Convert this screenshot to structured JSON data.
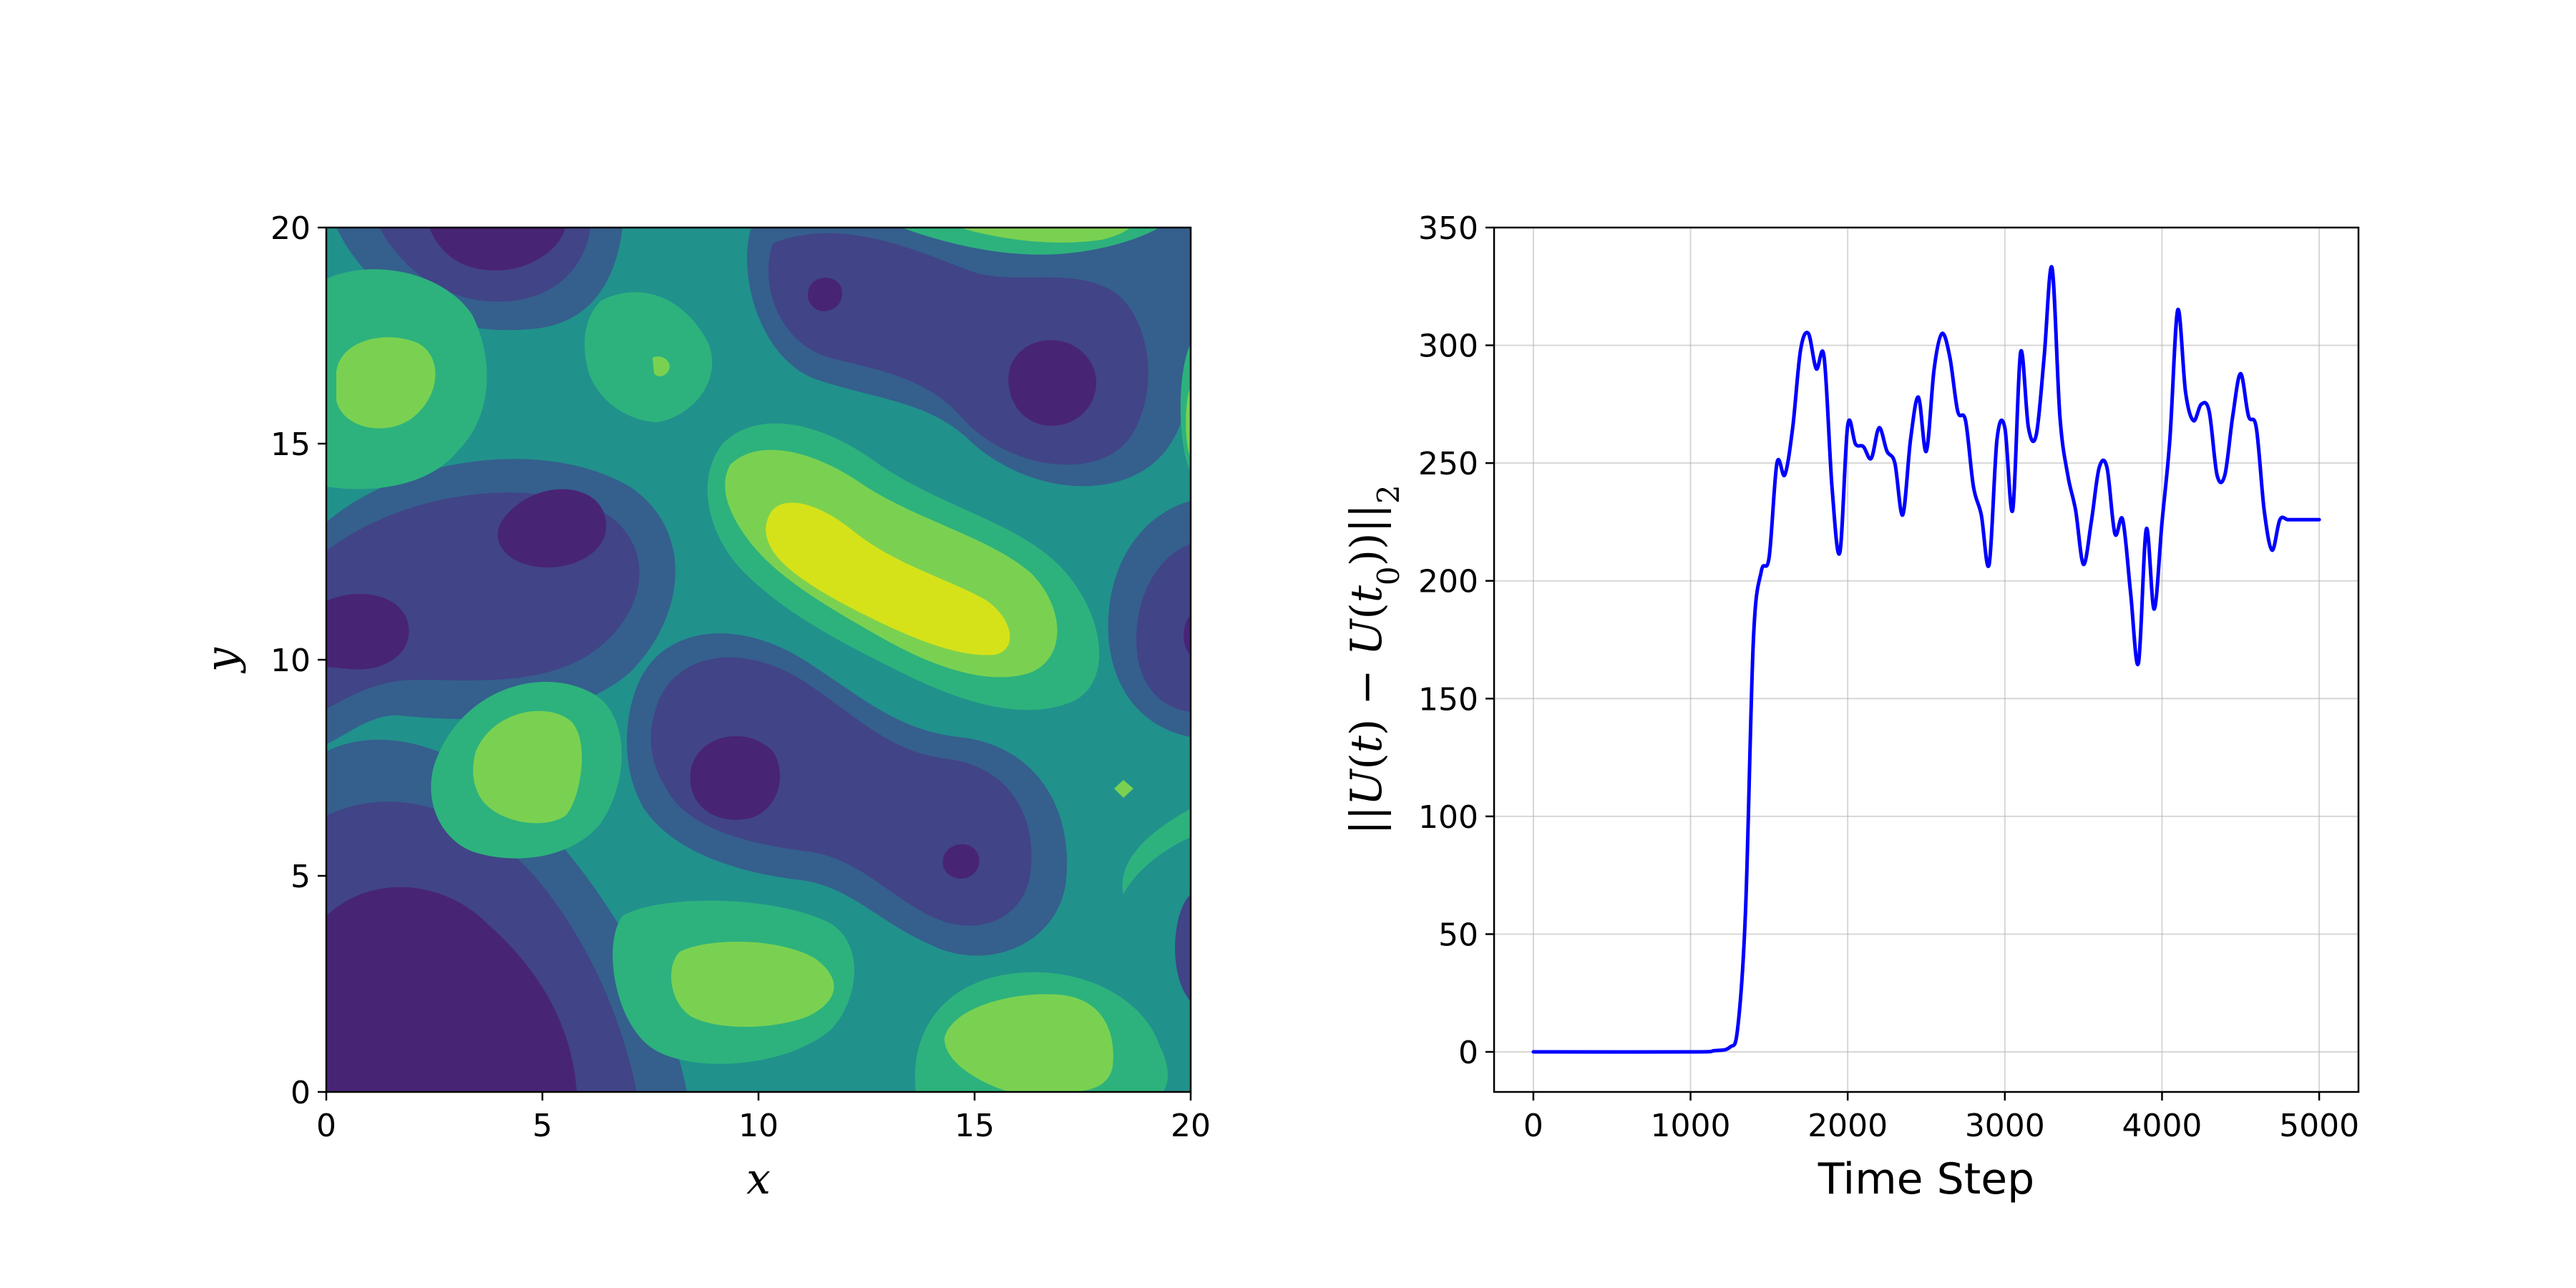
{
  "chart_data": [
    {
      "type": "heatmap",
      "subtype": "filled-contour",
      "colormap": "viridis",
      "xlabel": "x",
      "ylabel": "y",
      "xlim": [
        0,
        20
      ],
      "ylim": [
        0,
        20
      ],
      "xticks": [
        "0",
        "5",
        "10",
        "15",
        "20"
      ],
      "yticks": [
        "0",
        "5",
        "10",
        "15",
        "20"
      ],
      "levels": [
        "#482475",
        "#414487",
        "#355f8d",
        "#21918c",
        "#2db27d",
        "#7ad151",
        "#d5e21a"
      ],
      "grid": false,
      "features": [
        {
          "x": 1.8,
          "y": 1.8,
          "level": 0,
          "note": "low"
        },
        {
          "x": 4.2,
          "y": 19.8,
          "level": 0
        },
        {
          "x": 4.8,
          "y": 13.0,
          "level": 0
        },
        {
          "x": 1.0,
          "y": 10.7,
          "level": 0
        },
        {
          "x": 9.4,
          "y": 7.4,
          "level": 0
        },
        {
          "x": 11.5,
          "y": 18.4,
          "level": 0
        },
        {
          "x": 16.8,
          "y": 16.4,
          "level": 0
        },
        {
          "x": 14.8,
          "y": 5.3,
          "level": 0
        },
        {
          "x": 1.3,
          "y": 16.2,
          "level": 5,
          "note": "high"
        },
        {
          "x": 4.7,
          "y": 7.7,
          "level": 5
        },
        {
          "x": 10.5,
          "y": 2.5,
          "level": 5
        },
        {
          "x": 16.0,
          "y": 1.1,
          "level": 5
        },
        {
          "x": 13.5,
          "y": 12.0,
          "level": 6,
          "note": "max"
        }
      ]
    },
    {
      "type": "line",
      "xlabel": "Time Step",
      "ylabel": "||U(t) − U(t0)||2",
      "xlim": [
        -250,
        5250
      ],
      "ylim": [
        -17,
        350
      ],
      "xticks": [
        0,
        1000,
        2000,
        3000,
        4000,
        5000
      ],
      "yticks": [
        0,
        50,
        100,
        150,
        200,
        250,
        300,
        350
      ],
      "grid": true,
      "series": [
        {
          "color": "#0000ff",
          "x": [
            0,
            1000,
            1150,
            1250,
            1300,
            1350,
            1400,
            1450,
            1500,
            1550,
            1600,
            1650,
            1700,
            1750,
            1800,
            1850,
            1900,
            1950,
            2000,
            2050,
            2100,
            2150,
            2200,
            2250,
            2300,
            2350,
            2400,
            2450,
            2500,
            2550,
            2600,
            2650,
            2700,
            2750,
            2800,
            2850,
            2900,
            2950,
            3000,
            3050,
            3100,
            3150,
            3200,
            3250,
            3300,
            3350,
            3400,
            3450,
            3500,
            3550,
            3600,
            3650,
            3700,
            3750,
            3800,
            3850,
            3900,
            3950,
            4000,
            4050,
            4100,
            4150,
            4200,
            4250,
            4300,
            4350,
            4400,
            4450,
            4500,
            4550,
            4600,
            4650,
            4700,
            4750,
            4800,
            4850,
            4900,
            4950,
            5000
          ],
          "y": [
            0,
            0,
            0.5,
            2,
            10,
            60,
            175,
            204,
            210,
            250,
            245,
            265,
            298,
            305,
            290,
            295,
            240,
            212,
            266,
            258,
            257,
            252,
            265,
            255,
            250,
            228,
            260,
            278,
            255,
            290,
            305,
            295,
            272,
            268,
            240,
            228,
            207,
            260,
            265,
            230,
            297,
            265,
            262,
            295,
            333,
            270,
            245,
            230,
            207,
            225,
            248,
            248,
            220,
            226,
            195,
            165,
            222,
            188,
            225,
            260,
            315,
            280,
            268,
            275,
            272,
            245,
            245,
            270,
            288,
            270,
            265,
            230,
            213,
            226,
            226,
            226,
            226,
            226,
            226
          ]
        }
      ]
    }
  ]
}
